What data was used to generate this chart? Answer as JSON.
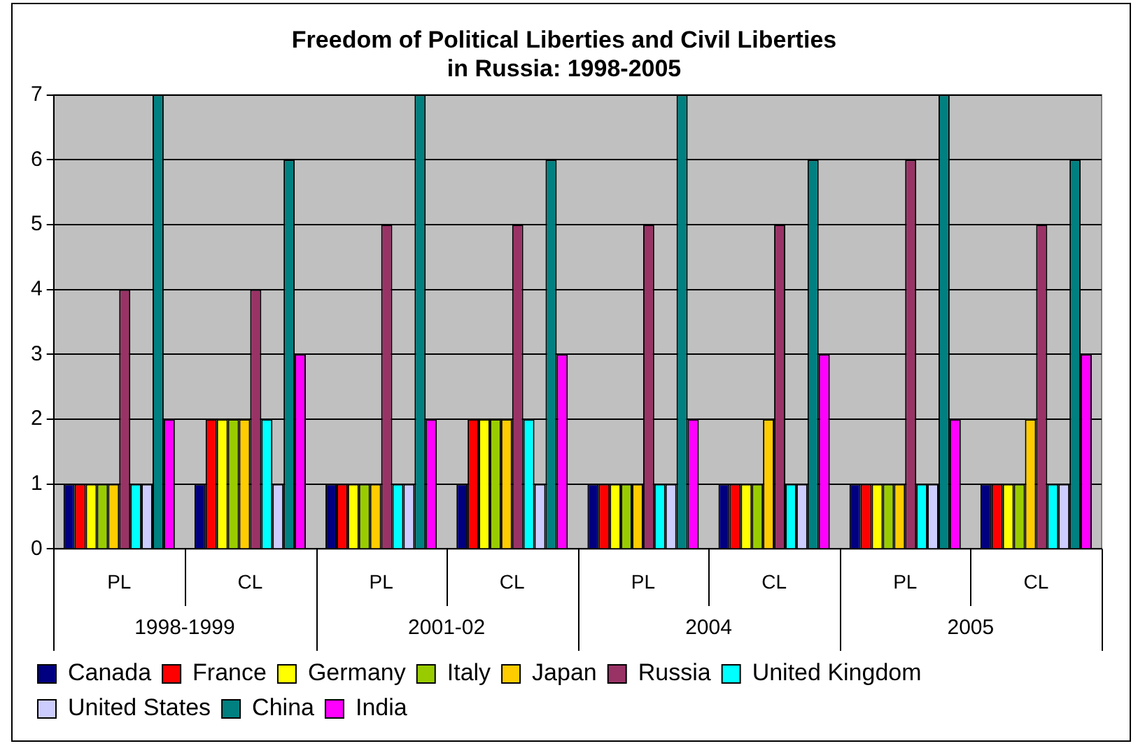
{
  "chart_data": {
    "type": "bar",
    "title": "Freedom of Political Liberties and Civil Liberties\nin Russia: 1998-2005",
    "categories": [
      "PL",
      "CL",
      "PL",
      "CL",
      "PL",
      "CL",
      "PL",
      "CL"
    ],
    "annotations": [
      "1998-1999",
      "2001-02",
      "2004",
      "2005"
    ],
    "series": [
      {
        "name": "Canada",
        "color": "#000080",
        "values": [
          1,
          1,
          1,
          1,
          1,
          1,
          1,
          1
        ]
      },
      {
        "name": "France",
        "color": "#ff0000",
        "values": [
          1,
          2,
          1,
          2,
          1,
          1,
          1,
          1
        ]
      },
      {
        "name": "Germany",
        "color": "#ffff00",
        "values": [
          1,
          2,
          1,
          2,
          1,
          1,
          1,
          1
        ]
      },
      {
        "name": "Italy",
        "color": "#99cc00",
        "values": [
          1,
          2,
          1,
          2,
          1,
          1,
          1,
          1
        ]
      },
      {
        "name": "Japan",
        "color": "#ffcc00",
        "values": [
          1,
          2,
          1,
          2,
          1,
          2,
          1,
          2
        ]
      },
      {
        "name": "Russia",
        "color": "#993366",
        "values": [
          4,
          4,
          5,
          5,
          5,
          5,
          6,
          5
        ]
      },
      {
        "name": "United Kingdom",
        "color": "#00ffff",
        "values": [
          1,
          2,
          1,
          2,
          1,
          1,
          1,
          1
        ]
      },
      {
        "name": "United States",
        "color": "#ccccff",
        "values": [
          1,
          1,
          1,
          1,
          1,
          1,
          1,
          1
        ]
      },
      {
        "name": "China",
        "color": "#008080",
        "values": [
          7,
          6,
          7,
          6,
          7,
          6,
          7,
          6
        ]
      },
      {
        "name": "India",
        "color": "#ff00ff",
        "values": [
          2,
          3,
          2,
          3,
          2,
          3,
          2,
          3
        ]
      }
    ],
    "ylim": [
      0,
      7
    ],
    "yticks": [
      0,
      1,
      2,
      3,
      4,
      5,
      6,
      7
    ],
    "grid": "y",
    "legend": "bottom"
  }
}
